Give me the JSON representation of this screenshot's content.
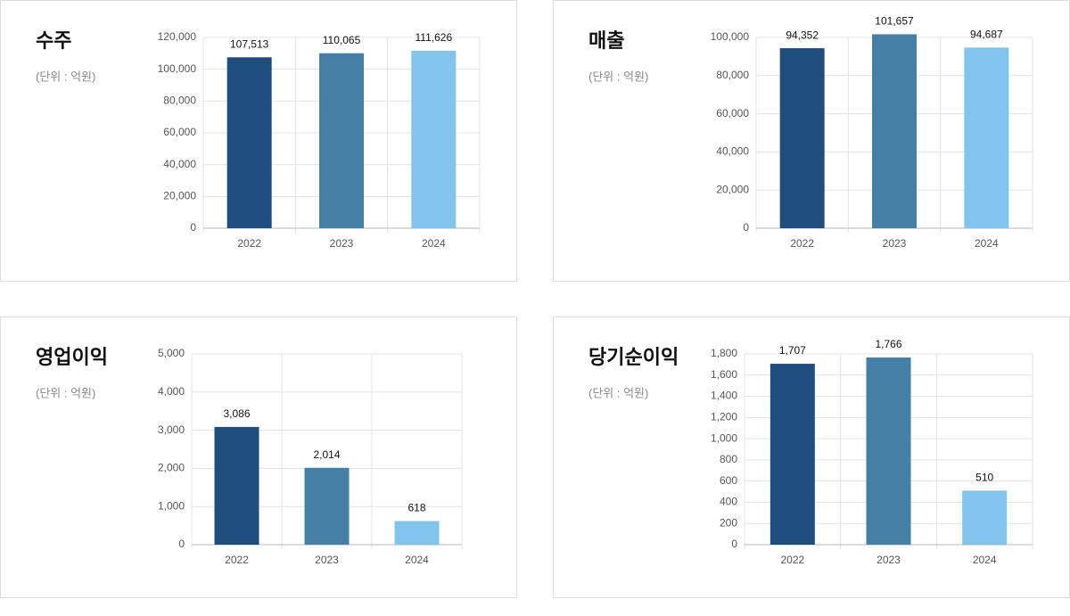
{
  "chart_data": [
    {
      "type": "bar",
      "title": "수주",
      "subtitle": "(단위 : 억원)",
      "categories": [
        "2022",
        "2023",
        "2024"
      ],
      "values": [
        107513,
        110065,
        111626
      ],
      "value_labels": [
        "107,513",
        "110,065",
        "111,626"
      ],
      "colors": [
        "#1f4e7d",
        "#467fa6",
        "#82c4ec"
      ],
      "ylim": [
        0,
        120000
      ],
      "yticks": [
        0,
        {
          "value": 20000,
          "label": "20,000"
        },
        {
          "value": 40000,
          "label": "40,000"
        },
        {
          "value": 60000,
          "label": "60,000"
        },
        {
          "value": 80000,
          "label": "80,000"
        },
        {
          "value": 100000,
          "label": "100,000"
        },
        {
          "value": 120000,
          "label": "120,000"
        }
      ],
      "grid": true
    },
    {
      "type": "bar",
      "title": "매출",
      "subtitle": "(단위 : 억원)",
      "categories": [
        "2022",
        "2023",
        "2024"
      ],
      "values": [
        94352,
        101657,
        94687
      ],
      "value_labels": [
        "94,352",
        "101,657",
        "94,687"
      ],
      "colors": [
        "#1f4e7d",
        "#467fa6",
        "#82c4ec"
      ],
      "ylim": [
        0,
        100000
      ],
      "yticks": [
        0,
        {
          "value": 20000,
          "label": "20,000"
        },
        {
          "value": 40000,
          "label": "40,000"
        },
        {
          "value": 60000,
          "label": "60,000"
        },
        {
          "value": 80000,
          "label": "80,000"
        },
        {
          "value": 100000,
          "label": "100,000"
        }
      ],
      "grid": true
    },
    {
      "type": "bar",
      "title": "영업이익",
      "subtitle": "(단위 : 억원)",
      "categories": [
        "2022",
        "2023",
        "2024"
      ],
      "values": [
        3086,
        2014,
        618
      ],
      "value_labels": [
        "3,086",
        "2,014",
        "618"
      ],
      "colors": [
        "#1f4e7d",
        "#467fa6",
        "#82c4ec"
      ],
      "ylim": [
        0,
        5000
      ],
      "yticks": [
        0,
        {
          "value": 1000,
          "label": "1,000"
        },
        {
          "value": 2000,
          "label": "2,000"
        },
        {
          "value": 3000,
          "label": "3,000"
        },
        {
          "value": 4000,
          "label": "4,000"
        },
        {
          "value": 5000,
          "label": "5,000"
        }
      ],
      "grid": true
    },
    {
      "type": "bar",
      "title": "당기순이익",
      "subtitle": "(단위 : 억원)",
      "categories": [
        "2022",
        "2023",
        "2024"
      ],
      "values": [
        1707,
        1766,
        510
      ],
      "value_labels": [
        "1,707",
        "1,766",
        "510"
      ],
      "colors": [
        "#1f4e7d",
        "#467fa6",
        "#82c4ec"
      ],
      "ylim": [
        0,
        1800
      ],
      "yticks": [
        0,
        200,
        400,
        600,
        800,
        {
          "value": 1000,
          "label": "1,000"
        },
        {
          "value": 1200,
          "label": "1,200"
        },
        {
          "value": 1400,
          "label": "1,400"
        },
        {
          "value": 1600,
          "label": "1,600"
        },
        {
          "value": 1800,
          "label": "1,800"
        }
      ],
      "grid": true
    }
  ]
}
